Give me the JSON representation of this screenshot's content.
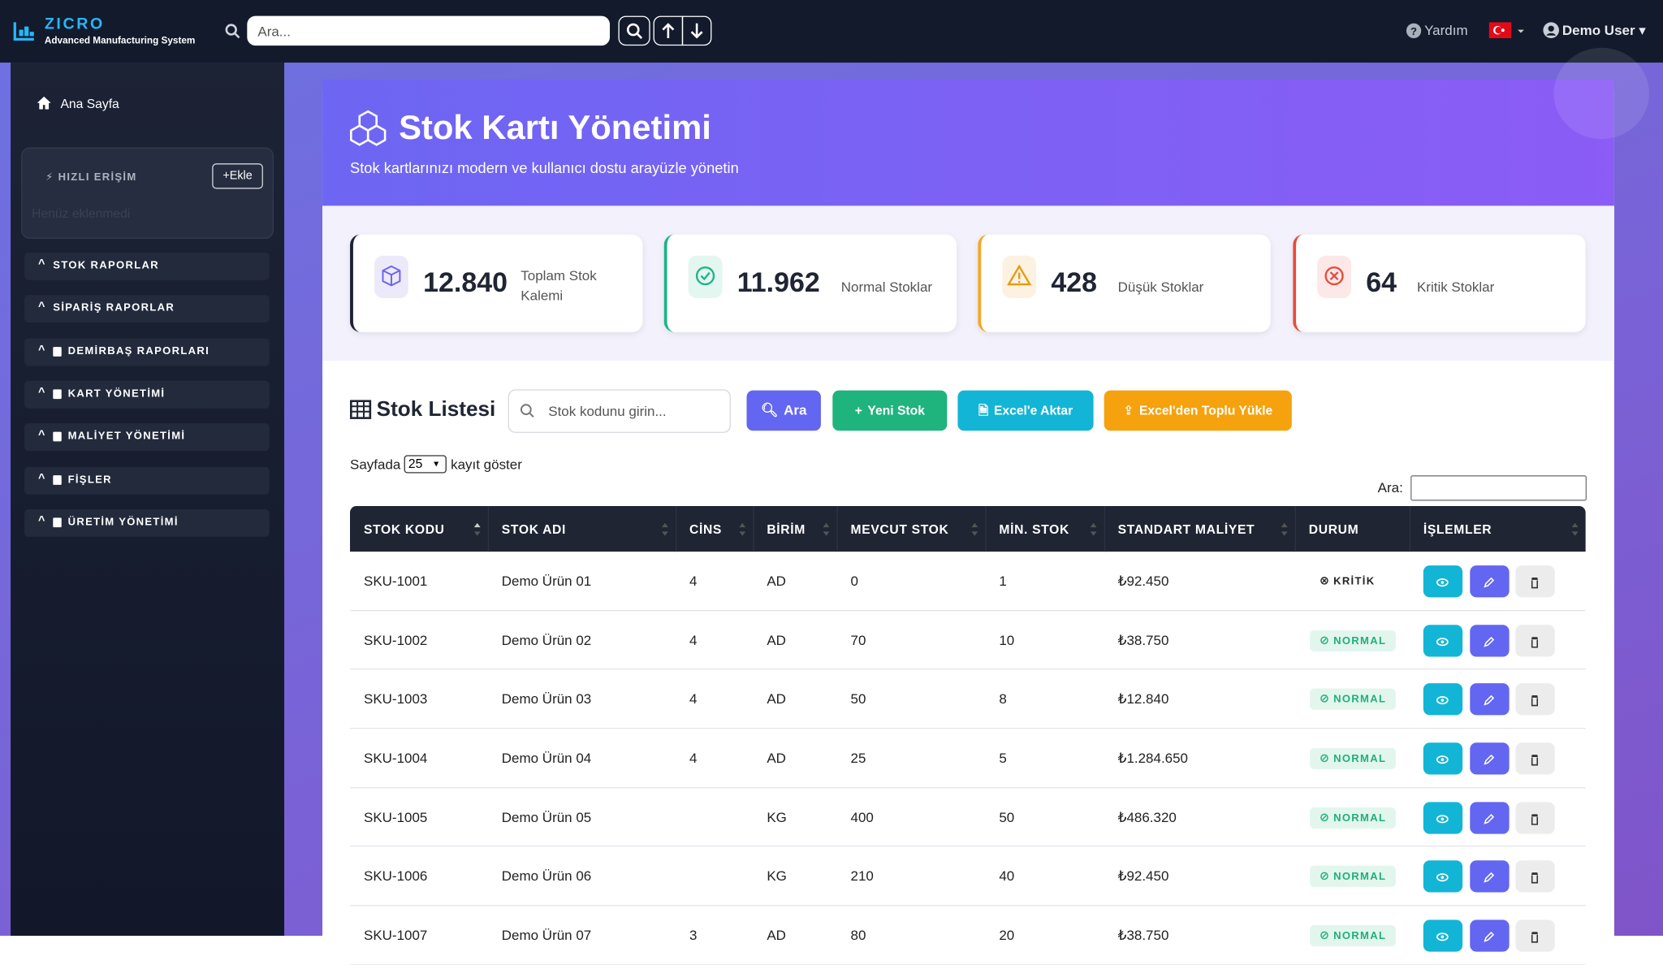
{
  "topbar": {
    "brand": "ZICRO",
    "tagline": "Advanced Manufacturing System",
    "search_placeholder": "Ara...",
    "help": "Yardım",
    "user": "Demo User"
  },
  "sidebar": {
    "home": "Ana Sayfa",
    "quick_access": {
      "title": "HIZLI ERİŞİM",
      "add": "Ekle",
      "empty": "Henüz eklenmedi"
    },
    "menu": [
      "STOK RAPORLAR",
      "SİPARİŞ RAPORLAR",
      "DEMİRBAŞ RAPORLARI",
      "KART YÖNETİMİ",
      "MALİYET YÖNETİMİ",
      "FİŞLER",
      "ÜRETİM YÖNETİMİ"
    ]
  },
  "hero": {
    "title": "Stok Kartı Yönetimi",
    "subtitle": "Stok kartlarınızı modern ve kullanıcı dostu arayüzle yönetin"
  },
  "stats": [
    {
      "value": "12.840",
      "label": "Toplam Stok Kalemi"
    },
    {
      "value": "11.962",
      "label": "Normal Stoklar"
    },
    {
      "value": "428",
      "label": "Düşük Stoklar"
    },
    {
      "value": "64",
      "label": "Kritik Stoklar"
    }
  ],
  "list": {
    "title": "Stok Listesi",
    "search_placeholder": "Stok kodunu girin...",
    "buttons": [
      "Ara",
      "Yeni Stok",
      "Excel'e Aktar",
      "Excel'den Toplu Yükle"
    ],
    "page_size_prefix": "Sayfada",
    "page_size": "25",
    "page_size_suffix": "kayıt göster",
    "filter_label": "Ara:"
  },
  "table": {
    "headers": [
      "STOK KODU",
      "STOK ADI",
      "CİNS",
      "BİRİM",
      "MEVCUT STOK",
      "MİN. STOK",
      "STANDART MALİYET",
      "DURUM",
      "İŞLEMLER"
    ],
    "rows": [
      [
        "SKU-1001",
        "Demo Ürün 01",
        "4",
        "AD",
        "0",
        "1",
        "₺92.450",
        "KRİTİK"
      ],
      [
        "SKU-1002",
        "Demo Ürün 02",
        "4",
        "AD",
        "70",
        "10",
        "₺38.750",
        "NORMAL"
      ],
      [
        "SKU-1003",
        "Demo Ürün 03",
        "4",
        "AD",
        "50",
        "8",
        "₺12.840",
        "NORMAL"
      ],
      [
        "SKU-1004",
        "Demo Ürün 04",
        "4",
        "AD",
        "25",
        "5",
        "₺1.284.650",
        "NORMAL"
      ],
      [
        "SKU-1005",
        "Demo Ürün 05",
        null,
        "KG",
        "400",
        "50",
        "₺486.320",
        "NORMAL"
      ],
      [
        "SKU-1006",
        "Demo Ürün 06",
        null,
        "KG",
        "210",
        "40",
        "₺92.450",
        "NORMAL"
      ],
      [
        "SKU-1007",
        "Demo Ürün 07",
        "3",
        "AD",
        "80",
        "20",
        "₺38.750",
        "NORMAL"
      ]
    ]
  }
}
